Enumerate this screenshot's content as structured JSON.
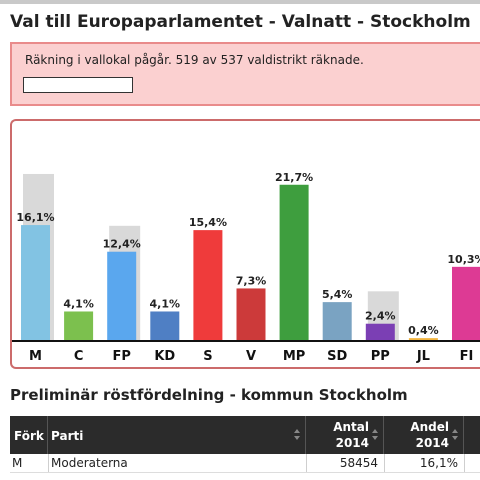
{
  "page": {
    "title": "Val till Europaparlamentet - Valnatt - Stockholm"
  },
  "status": {
    "text": "Räkning i vallokal pågår. 519 av 537 valdistrikt räknade.",
    "counted": 519,
    "total": 537
  },
  "colors": {
    "status_bg": "#fbd0d0",
    "status_border": "#e98b8b",
    "panel_border": "#cc6b6b",
    "previous_bar": "#d9d9d9",
    "table_header": "#2b2b2b"
  },
  "chart_data": {
    "type": "bar",
    "categories": [
      "M",
      "C",
      "FP",
      "KD",
      "S",
      "V",
      "MP",
      "SD",
      "PP",
      "JL",
      "FI"
    ],
    "series": [
      {
        "values": [
          16.1,
          4.1,
          12.4,
          4.1,
          15.4,
          7.3,
          21.7,
          5.4,
          2.4,
          0.4,
          10.3
        ],
        "colors": [
          "#82c3e3",
          "#7cc04e",
          "#5aa7ee",
          "#4f7fc4",
          "#ef3b3b",
          "#cc3a3a",
          "#3e9e3e",
          "#7aa3c2",
          "#7b3fb4",
          "#f2b541",
          "#dd3a94"
        ]
      },
      {
        "values": [
          23.2,
          null,
          16.0,
          null,
          null,
          null,
          null,
          null,
          6.9,
          null,
          null
        ]
      }
    ],
    "data_labels": [
      "16,1%",
      "4,1%",
      "12,4%",
      "4,1%",
      "15,4%",
      "7,3%",
      "21,7%",
      "5,4%",
      "2,4%",
      "0,4%",
      "10,3%"
    ],
    "ylim": [
      0,
      25
    ],
    "grid": false,
    "legend": "none"
  },
  "table": {
    "title": "Preliminär röstfördelning - kommun Stockholm",
    "columns": [
      {
        "label": "Förk"
      },
      {
        "label": "Parti"
      },
      {
        "line1": "Antal",
        "line2": "2014"
      },
      {
        "line1": "Andel",
        "line2": "2014"
      }
    ],
    "rows": [
      {
        "abbr": "M",
        "party": "Moderaterna",
        "count": "58454",
        "share": "16,1%"
      }
    ]
  }
}
